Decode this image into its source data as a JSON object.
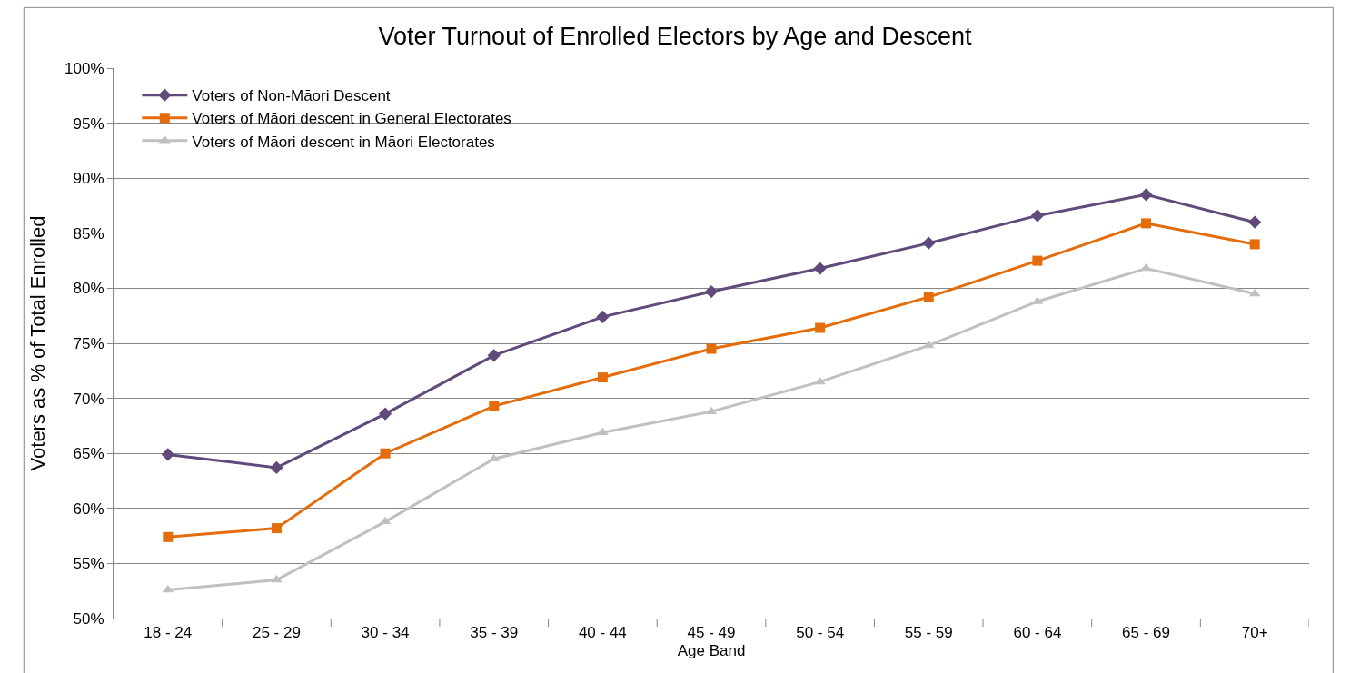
{
  "chart_data": {
    "type": "line",
    "title": "Voter Turnout of Enrolled Electors by Age and Descent",
    "xlabel": "Age Band",
    "ylabel": "Voters as % of Total Enrolled",
    "categories": [
      "18 - 24",
      "25 - 29",
      "30 - 34",
      "35 - 39",
      "40 - 44",
      "45 - 49",
      "50 - 54",
      "55 - 59",
      "60 - 64",
      "65 - 69",
      "70+"
    ],
    "series": [
      {
        "name": "Voters of Non-Māori Descent",
        "color": "#604a7b",
        "marker": "diamond",
        "values": [
          64.9,
          63.7,
          68.6,
          73.9,
          77.4,
          79.7,
          81.8,
          84.1,
          86.6,
          88.5,
          86.0
        ]
      },
      {
        "name": "Voters of Māori descent in General Electorates",
        "color": "#e46c0a",
        "marker": "square",
        "values": [
          57.4,
          58.2,
          65.0,
          69.3,
          71.9,
          74.5,
          76.4,
          79.2,
          82.5,
          85.9,
          84.0
        ]
      },
      {
        "name": "Voters of Māori descent in Māori Electorates",
        "color": "#c0c0c0",
        "marker": "triangle",
        "values": [
          52.6,
          53.5,
          58.8,
          64.5,
          66.9,
          68.8,
          71.5,
          74.8,
          78.8,
          81.8,
          79.5
        ]
      }
    ],
    "ylim": [
      50,
      100
    ],
    "yticks": [
      {
        "value": 50,
        "label": "50%"
      },
      {
        "value": 55,
        "label": "55%"
      },
      {
        "value": 60,
        "label": "60%"
      },
      {
        "value": 65,
        "label": "65%"
      },
      {
        "value": 70,
        "label": "70%"
      },
      {
        "value": 75,
        "label": "75%"
      },
      {
        "value": 80,
        "label": "80%"
      },
      {
        "value": 85,
        "label": "85%"
      },
      {
        "value": 90,
        "label": "90%"
      },
      {
        "value": 95,
        "label": "95%"
      },
      {
        "value": 100,
        "label": "100%"
      }
    ],
    "grid": "y",
    "legend": "top left",
    "line_style": "solid"
  }
}
